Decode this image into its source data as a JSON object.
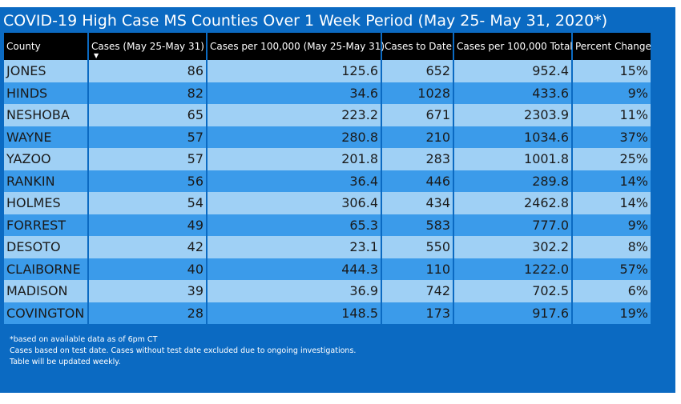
{
  "title": "COVID-19 High Case MS Counties Over 1 Week Period (May 25- May 31, 2020*)",
  "columns": [
    "County",
    "Cases (May 25-May 31)",
    "Cases per 100,000 (May 25-May 31)",
    "Cases to Date",
    "Cases per 100,000 Total",
    "Percent Change"
  ],
  "sort_indicator": "▼",
  "sorted_column": 1,
  "rows": [
    {
      "county": "JONES",
      "cases_week": "86",
      "per100k_week": "125.6",
      "cases_to_date": "652",
      "per100k_total": "952.4",
      "pct_change": "15%"
    },
    {
      "county": "HINDS",
      "cases_week": "82",
      "per100k_week": "34.6",
      "cases_to_date": "1028",
      "per100k_total": "433.6",
      "pct_change": "9%"
    },
    {
      "county": "NESHOBA",
      "cases_week": "65",
      "per100k_week": "223.2",
      "cases_to_date": "671",
      "per100k_total": "2303.9",
      "pct_change": "11%"
    },
    {
      "county": "WAYNE",
      "cases_week": "57",
      "per100k_week": "280.8",
      "cases_to_date": "210",
      "per100k_total": "1034.6",
      "pct_change": "37%"
    },
    {
      "county": "YAZOO",
      "cases_week": "57",
      "per100k_week": "201.8",
      "cases_to_date": "283",
      "per100k_total": "1001.8",
      "pct_change": "25%"
    },
    {
      "county": "RANKIN",
      "cases_week": "56",
      "per100k_week": "36.4",
      "cases_to_date": "446",
      "per100k_total": "289.8",
      "pct_change": "14%"
    },
    {
      "county": "HOLMES",
      "cases_week": "54",
      "per100k_week": "306.4",
      "cases_to_date": "434",
      "per100k_total": "2462.8",
      "pct_change": "14%"
    },
    {
      "county": "FORREST",
      "cases_week": "49",
      "per100k_week": "65.3",
      "cases_to_date": "583",
      "per100k_total": "777.0",
      "pct_change": "9%"
    },
    {
      "county": "DESOTO",
      "cases_week": "42",
      "per100k_week": "23.1",
      "cases_to_date": "550",
      "per100k_total": "302.2",
      "pct_change": "8%"
    },
    {
      "county": "CLAIBORNE",
      "cases_week": "40",
      "per100k_week": "444.3",
      "cases_to_date": "110",
      "per100k_total": "1222.0",
      "pct_change": "57%"
    },
    {
      "county": "MADISON",
      "cases_week": "39",
      "per100k_week": "36.9",
      "cases_to_date": "742",
      "per100k_total": "702.5",
      "pct_change": "6%"
    },
    {
      "county": "COVINGTON",
      "cases_week": "28",
      "per100k_week": "148.5",
      "cases_to_date": "173",
      "per100k_total": "917.6",
      "pct_change": "19%"
    }
  ],
  "notes": [
    "*based on available data as of 6pm CT",
    "Cases based on test date. Cases without test date excluded due to ongoing investigations.",
    "Table will be updated weekly."
  ],
  "colors": {
    "panel_background": "#0b6ac2",
    "header_background": "#000000",
    "row_light": "#9fd0f5",
    "row_dark": "#3b9bea"
  },
  "chart_data": {
    "type": "table",
    "title": "COVID-19 High Case MS Counties Over 1 Week Period (May 25- May 31, 2020*)",
    "columns": [
      "County",
      "Cases (May 25-May 31)",
      "Cases per 100,000 (May 25-May 31)",
      "Cases to Date",
      "Cases per 100,000 Total",
      "Percent Change"
    ],
    "rows": [
      [
        "JONES",
        86,
        125.6,
        652,
        952.4,
        "15%"
      ],
      [
        "HINDS",
        82,
        34.6,
        1028,
        433.6,
        "9%"
      ],
      [
        "NESHOBA",
        65,
        223.2,
        671,
        2303.9,
        "11%"
      ],
      [
        "WAYNE",
        57,
        280.8,
        210,
        1034.6,
        "37%"
      ],
      [
        "YAZOO",
        57,
        201.8,
        283,
        1001.8,
        "25%"
      ],
      [
        "RANKIN",
        56,
        36.4,
        446,
        289.8,
        "14%"
      ],
      [
        "HOLMES",
        54,
        306.4,
        434,
        2462.8,
        "14%"
      ],
      [
        "FORREST",
        49,
        65.3,
        583,
        777.0,
        "9%"
      ],
      [
        "DESOTO",
        42,
        23.1,
        550,
        302.2,
        "8%"
      ],
      [
        "CLAIBORNE",
        40,
        444.3,
        110,
        1222.0,
        "57%"
      ],
      [
        "MADISON",
        39,
        36.9,
        742,
        702.5,
        "6%"
      ],
      [
        "COVINGTON",
        28,
        148.5,
        173,
        917.6,
        "19%"
      ]
    ]
  }
}
